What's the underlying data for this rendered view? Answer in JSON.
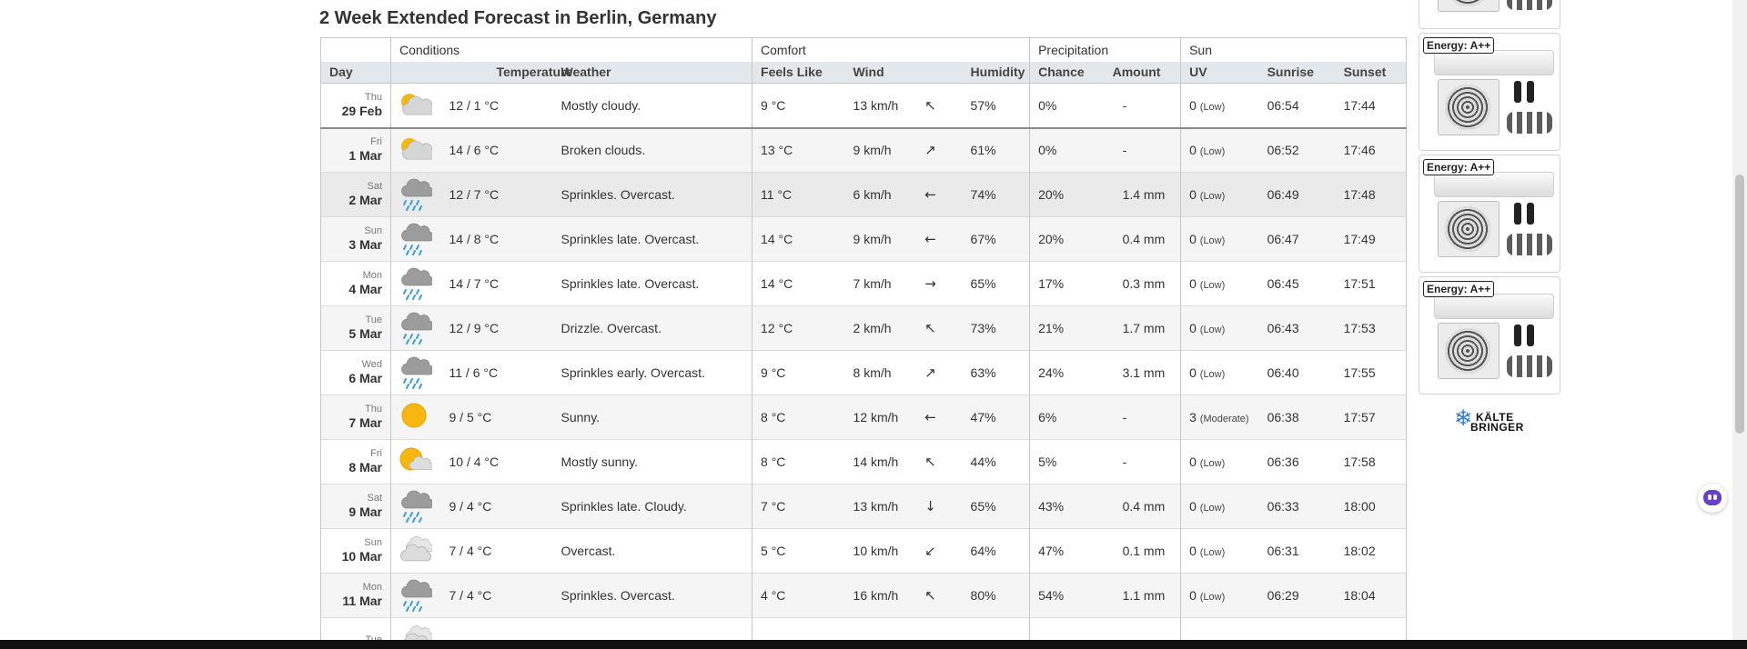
{
  "page_title": "2 Week Extended Forecast in Berlin, Germany",
  "groups": {
    "conditions": "Conditions",
    "comfort": "Comfort",
    "precipitation": "Precipitation",
    "sun": "Sun"
  },
  "columns": {
    "day": "Day",
    "temperature": "Temperature",
    "weather": "Weather",
    "feels_like": "Feels Like",
    "wind": "Wind",
    "humidity": "Humidity",
    "chance": "Chance",
    "amount": "Amount",
    "uv": "UV",
    "sunrise": "Sunrise",
    "sunset": "Sunset"
  },
  "rows": [
    {
      "dow": "Thu",
      "date": "29 Feb",
      "icon": "partly-cloudy-icon",
      "temp": "12 / 1 °C",
      "weather": "Mostly cloudy.",
      "feels": "9 °C",
      "wind": "13 km/h",
      "wind_dir": "north-northwest-arrow-icon",
      "humidity": "57%",
      "chance": "0%",
      "amount": "-",
      "uv": "0",
      "uv_label": "(Low)",
      "sunrise": "06:54",
      "sunset": "17:44"
    },
    {
      "dow": "Fri",
      "date": "1 Mar",
      "icon": "partly-cloudy-icon",
      "temp": "14 / 6 °C",
      "weather": "Broken clouds.",
      "feels": "13 °C",
      "wind": "9 km/h",
      "wind_dir": "north-northeast-arrow-icon",
      "humidity": "61%",
      "chance": "0%",
      "amount": "-",
      "uv": "0",
      "uv_label": "(Low)",
      "sunrise": "06:52",
      "sunset": "17:46"
    },
    {
      "dow": "Sat",
      "date": "2 Mar",
      "icon": "rain-cloud-icon",
      "temp": "12 / 7 °C",
      "weather": "Sprinkles. Overcast.",
      "feels": "11 °C",
      "wind": "6 km/h",
      "wind_dir": "west-arrow-icon",
      "humidity": "74%",
      "chance": "20%",
      "amount": "1.4 mm",
      "uv": "0",
      "uv_label": "(Low)",
      "sunrise": "06:49",
      "sunset": "17:48"
    },
    {
      "dow": "Sun",
      "date": "3 Mar",
      "icon": "rain-cloud-icon",
      "temp": "14 / 8 °C",
      "weather": "Sprinkles late. Overcast.",
      "feels": "14 °C",
      "wind": "9 km/h",
      "wind_dir": "west-arrow-icon",
      "humidity": "67%",
      "chance": "20%",
      "amount": "0.4 mm",
      "uv": "0",
      "uv_label": "(Low)",
      "sunrise": "06:47",
      "sunset": "17:49"
    },
    {
      "dow": "Mon",
      "date": "4 Mar",
      "icon": "rain-cloud-icon",
      "temp": "14 / 7 °C",
      "weather": "Sprinkles late. Overcast.",
      "feels": "14 °C",
      "wind": "7 km/h",
      "wind_dir": "east-arrow-icon",
      "humidity": "65%",
      "chance": "17%",
      "amount": "0.3 mm",
      "uv": "0",
      "uv_label": "(Low)",
      "sunrise": "06:45",
      "sunset": "17:51"
    },
    {
      "dow": "Tue",
      "date": "5 Mar",
      "icon": "rain-cloud-icon",
      "temp": "12 / 9 °C",
      "weather": "Drizzle. Overcast.",
      "feels": "12 °C",
      "wind": "2 km/h",
      "wind_dir": "north-northwest-arrow-icon",
      "humidity": "73%",
      "chance": "21%",
      "amount": "1.7 mm",
      "uv": "0",
      "uv_label": "(Low)",
      "sunrise": "06:43",
      "sunset": "17:53"
    },
    {
      "dow": "Wed",
      "date": "6 Mar",
      "icon": "rain-cloud-icon",
      "temp": "11 / 6 °C",
      "weather": "Sprinkles early. Overcast.",
      "feels": "9 °C",
      "wind": "8 km/h",
      "wind_dir": "northeast-arrow-icon",
      "humidity": "63%",
      "chance": "24%",
      "amount": "3.1 mm",
      "uv": "0",
      "uv_label": "(Low)",
      "sunrise": "06:40",
      "sunset": "17:55"
    },
    {
      "dow": "Thu",
      "date": "7 Mar",
      "icon": "sun-icon",
      "temp": "9 / 5 °C",
      "weather": "Sunny.",
      "feels": "8 °C",
      "wind": "12 km/h",
      "wind_dir": "west-arrow-icon",
      "humidity": "47%",
      "chance": "6%",
      "amount": "-",
      "uv": "3",
      "uv_label": "(Moderate)",
      "sunrise": "06:38",
      "sunset": "17:57"
    },
    {
      "dow": "Fri",
      "date": "8 Mar",
      "icon": "sun-cloud-icon",
      "temp": "10 / 4 °C",
      "weather": "Mostly sunny.",
      "feels": "8 °C",
      "wind": "14 km/h",
      "wind_dir": "northwest-arrow-icon",
      "humidity": "44%",
      "chance": "5%",
      "amount": "-",
      "uv": "0",
      "uv_label": "(Low)",
      "sunrise": "06:36",
      "sunset": "17:58"
    },
    {
      "dow": "Sat",
      "date": "9 Mar",
      "icon": "rain-cloud-icon",
      "temp": "9 / 4 °C",
      "weather": "Sprinkles late. Cloudy.",
      "feels": "7 °C",
      "wind": "13 km/h",
      "wind_dir": "south-arrow-icon",
      "humidity": "65%",
      "chance": "43%",
      "amount": "0.4 mm",
      "uv": "0",
      "uv_label": "(Low)",
      "sunrise": "06:33",
      "sunset": "18:00"
    },
    {
      "dow": "Sun",
      "date": "10 Mar",
      "icon": "overcast-icon",
      "temp": "7 / 4 °C",
      "weather": "Overcast.",
      "feels": "5 °C",
      "wind": "10 km/h",
      "wind_dir": "southwest-arrow-icon",
      "humidity": "64%",
      "chance": "47%",
      "amount": "0.1 mm",
      "uv": "0",
      "uv_label": "(Low)",
      "sunrise": "06:31",
      "sunset": "18:02"
    },
    {
      "dow": "Mon",
      "date": "11 Mar",
      "icon": "rain-cloud-icon",
      "temp": "7 / 4 °C",
      "weather": "Sprinkles. Overcast.",
      "feels": "4 °C",
      "wind": "16 km/h",
      "wind_dir": "northwest-arrow-icon",
      "humidity": "80%",
      "chance": "54%",
      "amount": "1.1 mm",
      "uv": "0",
      "uv_label": "(Low)",
      "sunrise": "06:29",
      "sunset": "18:04"
    },
    {
      "dow": "Tue",
      "date": "",
      "icon": "overcast-icon",
      "temp": "",
      "weather": "",
      "feels": "",
      "wind": "",
      "wind_dir": "",
      "humidity": "",
      "chance": "",
      "amount": "",
      "uv": "",
      "uv_label": "",
      "sunrise": "",
      "sunset": ""
    }
  ],
  "ads": [
    {
      "badge": ""
    },
    {
      "badge": "Energy: A++"
    },
    {
      "badge": "Energy: A++"
    },
    {
      "badge": "Energy: A++"
    }
  ],
  "brand_logo": {
    "line1": "KÄLTE",
    "line2": "BRINGER"
  }
}
